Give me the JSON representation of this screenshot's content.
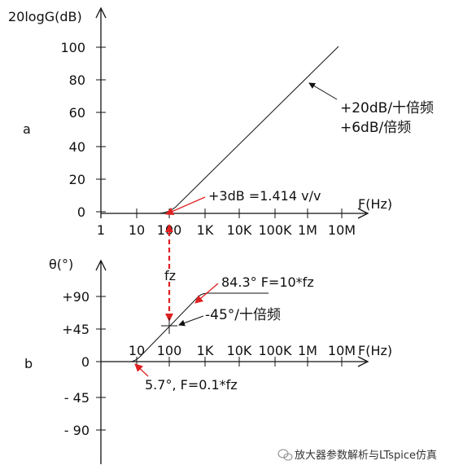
{
  "colors": {
    "axis": "#111111",
    "curve": "#111111",
    "annotation_arrow": "#e02020",
    "marker": "#e02020"
  },
  "magnitude_plot": {
    "panel_label": "a",
    "y_axis_label": "20logG(dB)",
    "y_ticks": [
      "100",
      "80",
      "60",
      "40",
      "20",
      "0"
    ],
    "x_ticks": [
      "1",
      "10",
      "100",
      "1K",
      "10K",
      "100K",
      "1M",
      "10M"
    ],
    "x_axis_label": "F(Hz)",
    "slope_note_1": "+20dB/十倍频",
    "slope_note_2": "+6dB/倍频",
    "corner_note": "+3dB =1.414 v/v"
  },
  "phase_plot": {
    "panel_label": "b",
    "y_axis_label": "θ(°)",
    "y_ticks": [
      "+90",
      "+45",
      "0",
      "- 45",
      "- 90"
    ],
    "x_ticks": [
      "10",
      "100",
      "1K",
      "10K",
      "100K",
      "1M",
      "10M"
    ],
    "x_axis_label": "F(Hz)",
    "fz_label": "fz",
    "high_note": "84.3° F=10*fz",
    "slope_note": "-45°/十倍频",
    "low_note": "5.7°, F=0.1*fz"
  },
  "watermark": "放大器参数解析与LTspice仿真",
  "watermark_icon": "wechat-icon"
}
